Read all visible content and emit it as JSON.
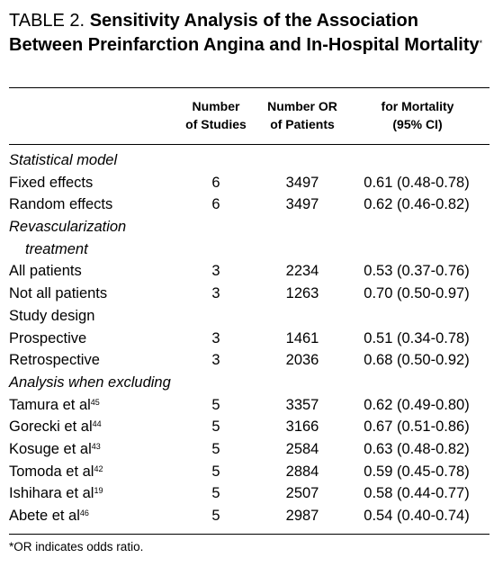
{
  "title": {
    "lead": "TABLE 2.",
    "bold": "Sensitivity Analysis of the Association Between Preinfarction Angina and In-Hospital Mortality",
    "marker": "*"
  },
  "headers": {
    "col1": [
      "Number",
      "of Studies"
    ],
    "col2": [
      "Number OR",
      "of Patients"
    ],
    "col3": [
      "for Mortality",
      "(95% CI)"
    ]
  },
  "rows": [
    {
      "type": "section",
      "label": "Statistical model"
    },
    {
      "type": "data",
      "label": "Fixed effects",
      "studies": "6",
      "patients": "3497",
      "or": "0.61 (0.48-0.78)"
    },
    {
      "type": "data",
      "label": "Random effects",
      "studies": "6",
      "patients": "3497",
      "or": "0.62 (0.46-0.82)"
    },
    {
      "type": "section",
      "label": "Revascularization"
    },
    {
      "type": "section-indent",
      "label": "treatment"
    },
    {
      "type": "data",
      "label": "All patients",
      "studies": "3",
      "patients": "2234",
      "or": "0.53 (0.37-0.76)"
    },
    {
      "type": "data",
      "label": "Not all patients",
      "studies": "3",
      "patients": "1263",
      "or": "0.70 (0.50-0.97)"
    },
    {
      "type": "plain-section",
      "label": "Study design"
    },
    {
      "type": "data",
      "label": "Prospective",
      "studies": "3",
      "patients": "1461",
      "or": "0.51 (0.34-0.78)"
    },
    {
      "type": "data",
      "label": "Retrospective",
      "studies": "3",
      "patients": "2036",
      "or": "0.68 (0.50-0.92)"
    },
    {
      "type": "section",
      "label": "Analysis when excluding"
    },
    {
      "type": "data",
      "label": "Tamura et al",
      "ref": "45",
      "studies": "5",
      "patients": "3357",
      "or": "0.62 (0.49-0.80)"
    },
    {
      "type": "data",
      "label": "Gorecki et al",
      "ref": "44",
      "studies": "5",
      "patients": "3166",
      "or": "0.67 (0.51-0.86)"
    },
    {
      "type": "data",
      "label": "Kosuge et al",
      "ref": "43",
      "studies": "5",
      "patients": "2584",
      "or": "0.63 (0.48-0.82)"
    },
    {
      "type": "data",
      "label": "Tomoda et al",
      "ref": "42",
      "studies": "5",
      "patients": "2884",
      "or": "0.59 (0.45-0.78)"
    },
    {
      "type": "data",
      "label": "Ishihara et al",
      "ref": "19",
      "studies": "5",
      "patients": "2507",
      "or": "0.58 (0.44-0.77)"
    },
    {
      "type": "data",
      "label": "Abete et al",
      "ref": "46",
      "studies": "5",
      "patients": "2987",
      "or": "0.54 (0.40-0.74)"
    }
  ],
  "footnote": "*OR indicates odds ratio."
}
